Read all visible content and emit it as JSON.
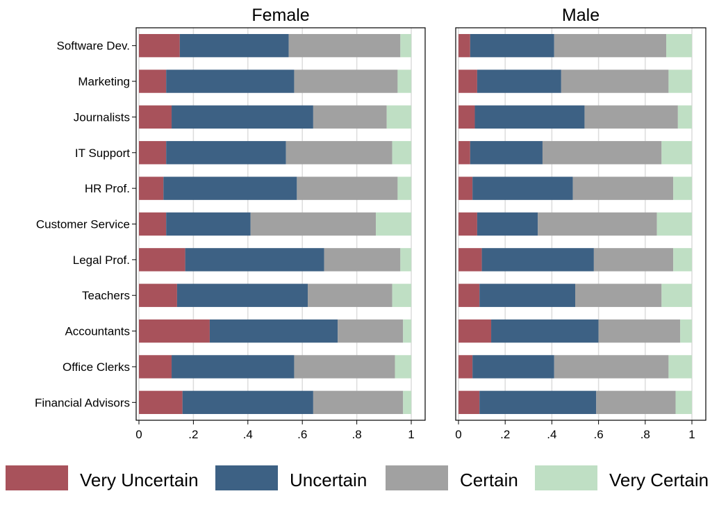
{
  "chart_data": {
    "type": "bar",
    "orientation": "horizontal",
    "stacked": true,
    "panels": [
      "Female",
      "Male"
    ],
    "categories": [
      "Software Dev.",
      "Marketing",
      "Journalists",
      "IT Support",
      "HR Prof.",
      "Customer Service",
      "Legal Prof.",
      "Teachers",
      "Accountants",
      "Office Clerks",
      "Financial Advisors"
    ],
    "xlim": [
      0,
      1
    ],
    "xticks": [
      0,
      0.2,
      0.4,
      0.6,
      0.8,
      1
    ],
    "xtick_labels": [
      "0",
      ".2",
      ".4",
      ".6",
      ".8",
      "1"
    ],
    "grid": true,
    "legend_position": "bottom",
    "series": [
      {
        "name": "Very Uncertain",
        "color": "#a8525b",
        "Female": [
          0.15,
          0.1,
          0.12,
          0.1,
          0.09,
          0.1,
          0.17,
          0.14,
          0.26,
          0.12,
          0.16
        ],
        "Male": [
          0.05,
          0.08,
          0.07,
          0.05,
          0.06,
          0.08,
          0.1,
          0.09,
          0.14,
          0.06,
          0.09
        ]
      },
      {
        "name": "Uncertain",
        "color": "#3d6184",
        "Female": [
          0.4,
          0.47,
          0.52,
          0.44,
          0.49,
          0.31,
          0.51,
          0.48,
          0.47,
          0.45,
          0.48
        ],
        "Male": [
          0.36,
          0.36,
          0.47,
          0.31,
          0.43,
          0.26,
          0.48,
          0.41,
          0.46,
          0.35,
          0.5
        ]
      },
      {
        "name": "Certain",
        "color": "#a1a1a1",
        "Female": [
          0.41,
          0.38,
          0.27,
          0.39,
          0.37,
          0.46,
          0.28,
          0.31,
          0.24,
          0.37,
          0.33
        ],
        "Male": [
          0.48,
          0.46,
          0.4,
          0.51,
          0.43,
          0.51,
          0.34,
          0.37,
          0.35,
          0.49,
          0.34
        ]
      },
      {
        "name": "Very Certain",
        "color": "#bfdfc4",
        "Female": [
          0.04,
          0.05,
          0.09,
          0.07,
          0.05,
          0.13,
          0.04,
          0.07,
          0.03,
          0.06,
          0.03
        ],
        "Male": [
          0.11,
          0.1,
          0.06,
          0.13,
          0.08,
          0.15,
          0.08,
          0.13,
          0.05,
          0.1,
          0.07
        ]
      }
    ]
  }
}
